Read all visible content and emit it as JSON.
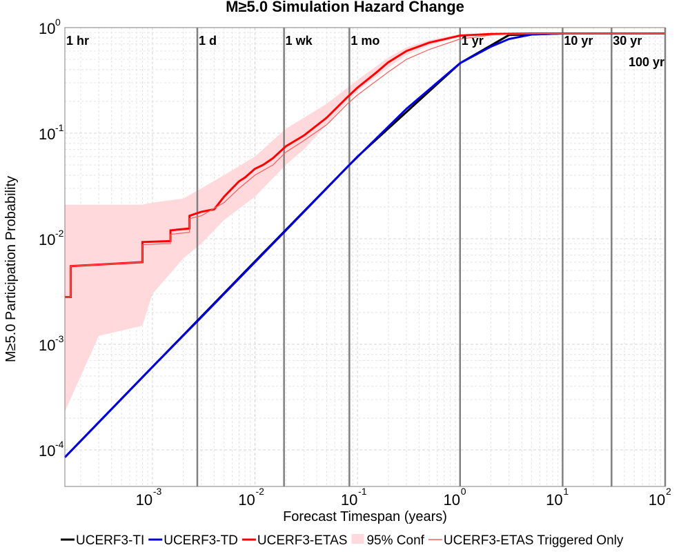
{
  "chart_data": {
    "type": "line",
    "title": "M≥5.0 Simulation Hazard Change",
    "xlabel": "Forecast Timespan (years)",
    "ylabel": "M≥5.0 Participation Probability",
    "x_scale": "log",
    "y_scale": "log",
    "xlim": [
      0.00014,
      100
    ],
    "ylim": [
      4.5e-05,
      1
    ],
    "x_ticks": [
      {
        "base": "10",
        "exp": "-3",
        "value": 0.001
      },
      {
        "base": "10",
        "exp": "-2",
        "value": 0.01
      },
      {
        "base": "10",
        "exp": "-1",
        "value": 0.1
      },
      {
        "base": "10",
        "exp": "0",
        "value": 1
      },
      {
        "base": "10",
        "exp": "1",
        "value": 10
      },
      {
        "base": "10",
        "exp": "2",
        "value": 100
      }
    ],
    "y_ticks": [
      {
        "base": "10",
        "exp": "0",
        "value": 1
      },
      {
        "base": "10",
        "exp": "-1",
        "value": 0.1
      },
      {
        "base": "10",
        "exp": "-2",
        "value": 0.01
      },
      {
        "base": "10",
        "exp": "-3",
        "value": 0.001
      },
      {
        "base": "10",
        "exp": "-4",
        "value": 0.0001
      }
    ],
    "grid": true,
    "legend_position": "bottom",
    "time_markers": [
      {
        "label": "1 hr",
        "x": 0.000114,
        "label_row": 0
      },
      {
        "label": "1 d",
        "x": 0.00274,
        "label_row": 0
      },
      {
        "label": "1 wk",
        "x": 0.0192,
        "label_row": 0
      },
      {
        "label": "1 mo",
        "x": 0.0833,
        "label_row": 0
      },
      {
        "label": "1 yr",
        "x": 1,
        "label_row": 0
      },
      {
        "label": "10 yr",
        "x": 10,
        "label_row": 0
      },
      {
        "label": "30 yr",
        "x": 30,
        "label_row": 0
      },
      {
        "label": "100 yr",
        "x": 100,
        "label_row": 1
      }
    ],
    "series": [
      {
        "name": "UCERF3-TI",
        "color": "#000000",
        "x": [
          0.00014,
          0.001,
          0.01,
          0.1,
          1,
          3,
          10,
          100
        ],
        "y": [
          8.5e-05,
          0.00061,
          0.0061,
          0.06,
          0.46,
          0.85,
          0.88,
          0.88
        ]
      },
      {
        "name": "UCERF3-TD",
        "color": "#0000dd",
        "x": [
          0.00014,
          0.001,
          0.00274,
          0.01,
          0.0192,
          0.0833,
          0.3,
          1,
          2,
          3,
          5,
          10,
          30,
          100
        ],
        "y": [
          8.5e-05,
          0.00061,
          0.00165,
          0.006,
          0.0115,
          0.05,
          0.17,
          0.46,
          0.66,
          0.78,
          0.86,
          0.88,
          0.88,
          0.88
        ]
      },
      {
        "name": "UCERF3-ETAS",
        "color": "#ff0000",
        "x": [
          0.00014,
          0.00016,
          0.00016,
          0.0008,
          0.0008,
          0.0015,
          0.0015,
          0.0023,
          0.0023,
          0.003,
          0.004,
          0.005,
          0.006,
          0.007,
          0.008,
          0.01,
          0.012,
          0.015,
          0.02,
          0.03,
          0.05,
          0.08,
          0.1,
          0.15,
          0.2,
          0.3,
          0.5,
          1,
          2,
          5,
          10,
          100
        ],
        "y": [
          0.0028,
          0.0028,
          0.0055,
          0.006,
          0.0093,
          0.0095,
          0.012,
          0.0125,
          0.0165,
          0.018,
          0.019,
          0.025,
          0.03,
          0.035,
          0.038,
          0.046,
          0.05,
          0.058,
          0.075,
          0.095,
          0.14,
          0.22,
          0.27,
          0.37,
          0.47,
          0.6,
          0.72,
          0.84,
          0.87,
          0.88,
          0.88,
          0.88
        ]
      },
      {
        "name": "95% Conf",
        "color": "#ffd9dc",
        "kind": "band",
        "x": [
          0.00014,
          0.0003,
          0.0008,
          0.001,
          0.002,
          0.003,
          0.005,
          0.01,
          0.02,
          0.03,
          0.05,
          0.08,
          0.1,
          0.2,
          0.3,
          0.5,
          1,
          2,
          5,
          10,
          100
        ],
        "y_low": [
          0.00023,
          0.0012,
          0.0015,
          0.003,
          0.0065,
          0.009,
          0.015,
          0.025,
          0.05,
          0.07,
          0.12,
          0.2,
          0.25,
          0.42,
          0.55,
          0.68,
          0.82,
          0.86,
          0.88,
          0.88,
          0.88
        ],
        "y_high": [
          0.021,
          0.021,
          0.021,
          0.022,
          0.024,
          0.03,
          0.04,
          0.06,
          0.11,
          0.14,
          0.19,
          0.27,
          0.32,
          0.52,
          0.65,
          0.76,
          0.87,
          0.88,
          0.88,
          0.88,
          0.88
        ]
      },
      {
        "name": "UCERF3-ETAS Triggered Only",
        "color": "#ff5a5a",
        "x": [
          0.00014,
          0.00016,
          0.00016,
          0.0008,
          0.0008,
          0.0015,
          0.0015,
          0.0023,
          0.0023,
          0.003,
          0.005,
          0.007,
          0.01,
          0.015,
          0.02,
          0.03,
          0.05,
          0.08,
          0.1,
          0.2,
          0.3,
          0.5,
          1,
          2,
          5,
          10,
          100
        ],
        "y": [
          0.0028,
          0.0028,
          0.0055,
          0.006,
          0.0088,
          0.009,
          0.011,
          0.0115,
          0.0155,
          0.0165,
          0.022,
          0.03,
          0.04,
          0.05,
          0.066,
          0.085,
          0.12,
          0.19,
          0.23,
          0.38,
          0.5,
          0.62,
          0.78,
          0.85,
          0.88,
          0.88,
          0.88
        ]
      }
    ]
  }
}
